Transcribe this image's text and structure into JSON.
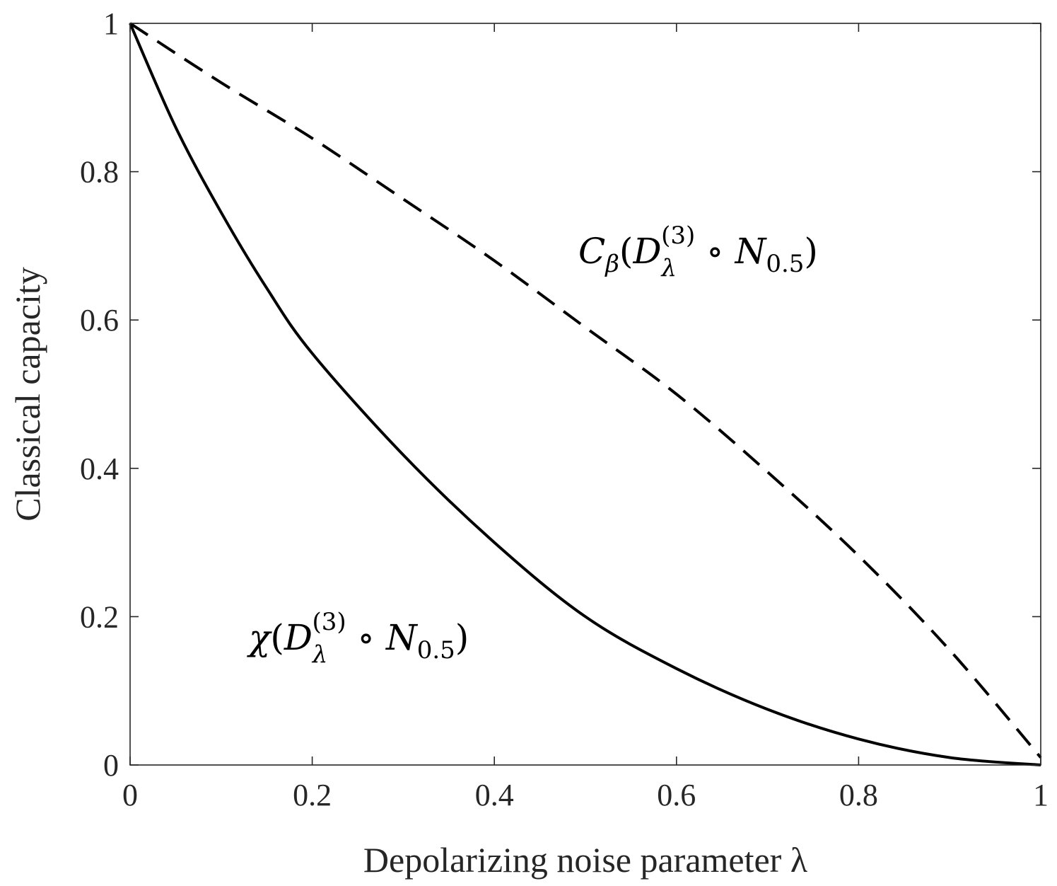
{
  "chart_data": {
    "type": "line",
    "xlabel": "Depolarizing noise parameter λ",
    "ylabel": "Classical capacity",
    "xlim": [
      0,
      1
    ],
    "ylim": [
      0,
      1
    ],
    "xticks": [
      "0",
      "0.2",
      "0.4",
      "0.6",
      "0.8",
      "1"
    ],
    "yticks": [
      "0",
      "0.2",
      "0.4",
      "0.6",
      "0.8",
      "1"
    ],
    "grid": false,
    "legend": "none",
    "series": [
      {
        "label": "C_β(D_λ^(3) ∘ N_0.5)",
        "style": "dashed",
        "color": "#000000",
        "x": [
          0,
          0.1,
          0.2,
          0.3,
          0.4,
          0.5,
          0.6,
          0.7,
          0.8,
          0.9,
          1.0
        ],
        "y": [
          1.0,
          0.92,
          0.845,
          0.763,
          0.68,
          0.59,
          0.5,
          0.395,
          0.282,
          0.155,
          0.01
        ]
      },
      {
        "label": "χ(D_λ^(3) ∘ N_0.5)",
        "style": "solid",
        "color": "#000000",
        "x": [
          0,
          0.05,
          0.1,
          0.15,
          0.2,
          0.3,
          0.4,
          0.5,
          0.6,
          0.7,
          0.8,
          0.9,
          1.0
        ],
        "y": [
          1.0,
          0.86,
          0.745,
          0.643,
          0.555,
          0.418,
          0.3,
          0.2,
          0.13,
          0.075,
          0.035,
          0.01,
          0.0
        ]
      }
    ],
    "annotations": [
      {
        "series": 0,
        "text": [
          "C",
          "β",
          "(",
          "D",
          "λ",
          "(3)",
          " ∘ ",
          "N",
          "0.5",
          ")"
        ],
        "anchor": "right-middle"
      },
      {
        "series": 1,
        "text": [
          "χ",
          "(",
          "D",
          "λ",
          "(3)",
          " ∘ ",
          "N",
          "0.5",
          ")"
        ],
        "anchor": "left-bottom"
      }
    ]
  }
}
